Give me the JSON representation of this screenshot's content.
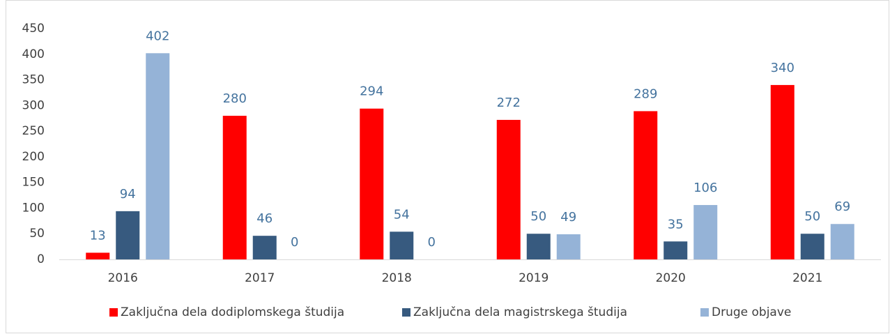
{
  "chart_data": {
    "type": "bar",
    "categories": [
      "2016",
      "2017",
      "2018",
      "2019",
      "2020",
      "2021"
    ],
    "series": [
      {
        "name": "Zaključna dela dodiplomskega študija",
        "color": "#ff0000",
        "values": [
          13,
          280,
          294,
          272,
          289,
          340
        ]
      },
      {
        "name": "Zaključna dela magistrskega študija",
        "color": "#375a7f",
        "values": [
          94,
          46,
          54,
          50,
          35,
          50
        ]
      },
      {
        "name": "Druge objave",
        "color": "#95b3d7",
        "values": [
          402,
          0,
          0,
          49,
          106,
          69
        ]
      }
    ],
    "ylim": [
      0,
      450
    ],
    "yticks": [
      0,
      50,
      100,
      150,
      200,
      250,
      300,
      350,
      400,
      450
    ],
    "grid": false,
    "legend": "bottom"
  }
}
